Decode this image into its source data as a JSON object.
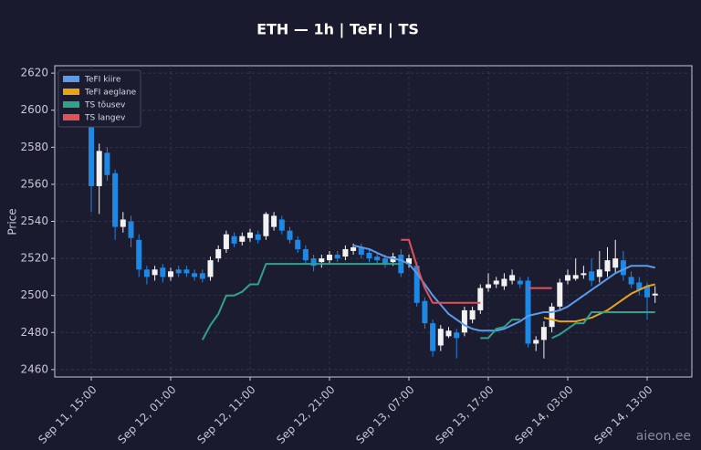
{
  "chart_data": {
    "type": "candlestick",
    "title": "ETH — 1h  |  TeFI  |  TS",
    "y_label": "Price",
    "watermark": "aieon.ee",
    "categories": [
      "Sep 11, 15:00",
      null,
      null,
      null,
      null,
      null,
      null,
      null,
      null,
      null,
      "Sep 12, 01:00",
      null,
      null,
      null,
      null,
      null,
      null,
      null,
      null,
      null,
      "Sep 12, 11:00",
      null,
      null,
      null,
      null,
      null,
      null,
      null,
      null,
      null,
      "Sep 12, 21:00",
      null,
      null,
      null,
      null,
      null,
      null,
      null,
      null,
      null,
      "Sep 13, 07:00",
      null,
      null,
      null,
      null,
      null,
      null,
      null,
      null,
      null,
      "Sep 13, 17:00",
      null,
      null,
      null,
      null,
      null,
      null,
      null,
      null,
      null,
      "Sep 14, 03:00",
      null,
      null,
      null,
      null,
      null,
      null,
      null,
      null,
      null,
      "Sep 14, 13:00",
      null
    ],
    "open": [
      2598,
      2559,
      2577,
      2566,
      2537,
      2540,
      2530,
      2514,
      2511,
      2515,
      2510,
      2514,
      2514,
      2512,
      2512,
      2510,
      2520,
      2525,
      2532,
      2529,
      2531,
      2533,
      2532,
      2537,
      2541,
      2535,
      2530,
      2525,
      2520,
      2518,
      2519,
      2522,
      2521,
      2524,
      2526,
      2523,
      2521,
      2520,
      2518,
      2522,
      2517,
      2516,
      2497,
      2485,
      2473,
      2478,
      2480,
      2480,
      2487,
      2492,
      2504,
      2506,
      2505,
      2508,
      2508,
      2508,
      2474,
      2476,
      2483,
      2494,
      2508,
      2509,
      2511,
      2513,
      2510,
      2513,
      2515,
      2519,
      2510,
      2507,
      2505,
      2500
    ],
    "high": [
      2605,
      2582,
      2580,
      2568,
      2545,
      2543,
      2533,
      2516,
      2516,
      2517,
      2515,
      2516,
      2516,
      2514,
      2514,
      2521,
      2527,
      2535,
      2534,
      2534,
      2536,
      2535,
      2545,
      2545,
      2543,
      2537,
      2532,
      2527,
      2522,
      2522,
      2524,
      2524,
      2527,
      2528,
      2528,
      2525,
      2523,
      2522,
      2523,
      2525,
      2522,
      2518,
      2499,
      2487,
      2484,
      2483,
      2482,
      2494,
      2494,
      2506,
      2512,
      2510,
      2512,
      2514,
      2510,
      2510,
      2478,
      2486,
      2496,
      2509,
      2514,
      2520,
      2516,
      2520,
      2524,
      2526,
      2530,
      2524,
      2513,
      2510,
      2507,
      2505
    ],
    "low": [
      2545,
      2544,
      2562,
      2530,
      2534,
      2526,
      2510,
      2506,
      2508,
      2507,
      2508,
      2510,
      2510,
      2508,
      2507,
      2508,
      2518,
      2523,
      2526,
      2527,
      2529,
      2528,
      2530,
      2535,
      2533,
      2528,
      2523,
      2517,
      2513,
      2515,
      2517,
      2518,
      2519,
      2522,
      2520,
      2518,
      2517,
      2515,
      2516,
      2510,
      2515,
      2494,
      2482,
      2467,
      2470,
      2477,
      2466,
      2478,
      2485,
      2490,
      2502,
      2504,
      2503,
      2506,
      2504,
      2472,
      2470,
      2466,
      2480,
      2492,
      2506,
      2508,
      2509,
      2505,
      2507,
      2510,
      2512,
      2508,
      2504,
      2500,
      2487,
      2496
    ],
    "close": [
      2559,
      2578,
      2565,
      2537,
      2541,
      2531,
      2514,
      2510,
      2514,
      2510,
      2513,
      2512,
      2512,
      2510,
      2509,
      2519,
      2525,
      2533,
      2528,
      2532,
      2534,
      2530,
      2544,
      2543,
      2535,
      2530,
      2525,
      2519,
      2516,
      2520,
      2522,
      2520,
      2525,
      2526,
      2522,
      2520,
      2519,
      2517,
      2521,
      2512,
      2520,
      2496,
      2485,
      2470,
      2482,
      2481,
      2477,
      2492,
      2492,
      2504,
      2506,
      2508,
      2509,
      2511,
      2506,
      2474,
      2476,
      2483,
      2494,
      2507,
      2511,
      2511,
      2512,
      2508,
      2514,
      2519,
      2520,
      2511,
      2506,
      2503,
      2499,
      2501
    ],
    "up_color": "#f2f2f2",
    "down_color": "#1e88e5",
    "series": [
      {
        "name": "TeFI kiire",
        "color": "#5b9bea",
        "values": [
          null,
          null,
          null,
          null,
          null,
          null,
          null,
          null,
          null,
          null,
          null,
          null,
          null,
          null,
          null,
          null,
          null,
          null,
          null,
          null,
          null,
          null,
          null,
          null,
          null,
          null,
          null,
          null,
          null,
          null,
          null,
          null,
          null,
          2527,
          2526,
          2525,
          2523,
          2521,
          2520,
          2519,
          2517,
          2512,
          2506,
          2500,
          2495,
          2490,
          2487,
          2484,
          2482,
          2481,
          2481,
          2481,
          2482,
          2484,
          2486,
          2489,
          2490,
          2491,
          2491,
          2492,
          2494,
          2497,
          2500,
          2503,
          2506,
          2509,
          2512,
          2514,
          2516,
          2516,
          2516,
          2515
        ]
      },
      {
        "name": "TeFI aeglane",
        "color": "#e8a317",
        "values": [
          null,
          null,
          null,
          null,
          null,
          null,
          null,
          null,
          null,
          null,
          null,
          null,
          null,
          null,
          null,
          null,
          null,
          null,
          null,
          null,
          null,
          null,
          null,
          null,
          null,
          null,
          null,
          null,
          null,
          null,
          null,
          null,
          null,
          null,
          null,
          null,
          null,
          null,
          null,
          null,
          null,
          null,
          null,
          null,
          null,
          null,
          null,
          null,
          null,
          null,
          null,
          null,
          null,
          null,
          null,
          null,
          null,
          2488,
          2487,
          2486,
          2486,
          2486,
          2487,
          2488,
          2490,
          2492,
          2495,
          2498,
          2501,
          2503,
          2505,
          2506
        ]
      },
      {
        "name": "TS tõusev",
        "color": "#2fa38a",
        "values": [
          null,
          null,
          null,
          null,
          null,
          null,
          null,
          null,
          null,
          null,
          null,
          null,
          null,
          null,
          2476,
          2484,
          2490,
          2500,
          2500,
          2502,
          2506,
          2506,
          2517,
          2517,
          2517,
          2517,
          2517,
          2517,
          2517,
          2517,
          2517,
          2517,
          2517,
          2517,
          2517,
          2517,
          2517,
          2517,
          2517,
          2517,
          null,
          null,
          null,
          null,
          null,
          null,
          null,
          null,
          null,
          2477,
          2477,
          2482,
          2483,
          2487,
          2487,
          null,
          null,
          null,
          2477,
          2479,
          2482,
          2485,
          2485,
          2491,
          2491,
          2491,
          2491,
          2491,
          2491,
          2491,
          2491,
          2491
        ]
      },
      {
        "name": "TS langev",
        "color": "#e0525a",
        "values": [
          null,
          null,
          null,
          null,
          null,
          null,
          null,
          null,
          null,
          null,
          null,
          null,
          null,
          null,
          null,
          null,
          null,
          null,
          null,
          null,
          null,
          null,
          null,
          null,
          null,
          null,
          null,
          null,
          null,
          null,
          null,
          null,
          null,
          null,
          null,
          null,
          null,
          null,
          null,
          2530,
          2530,
          2516,
          2504,
          2496,
          2496,
          2496,
          2496,
          2496,
          2496,
          2496,
          null,
          null,
          null,
          null,
          null,
          2504,
          2504,
          2504,
          2504,
          null,
          null,
          null,
          null,
          null,
          null,
          null,
          null,
          null,
          null,
          null,
          null,
          null
        ]
      }
    ],
    "ylim": [
      2456,
      2624
    ],
    "yticks": [
      2460,
      2480,
      2500,
      2520,
      2540,
      2560,
      2580,
      2600,
      2620
    ],
    "grid": true,
    "legend": "upper left"
  }
}
